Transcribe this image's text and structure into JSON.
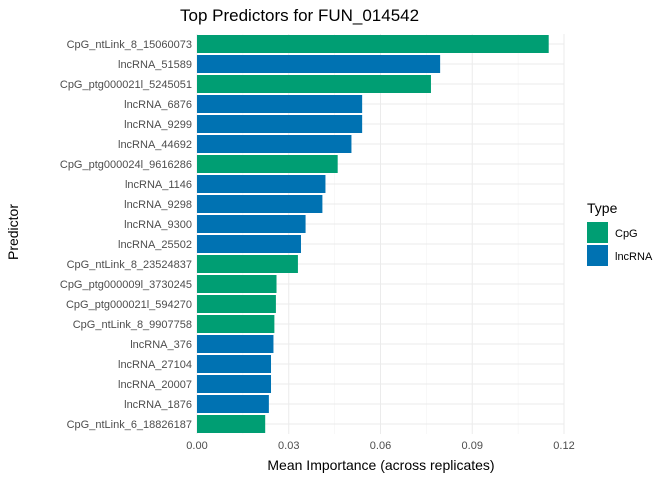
{
  "chart_data": {
    "type": "bar",
    "orientation": "horizontal",
    "title": "Top Predictors for FUN_014542",
    "xlabel": "Mean Importance (across replicates)",
    "ylabel": "Predictor",
    "xlim": [
      0,
      0.12
    ],
    "x_ticks": [
      "0.00",
      "0.03",
      "0.06",
      "0.09",
      "0.12"
    ],
    "grid": true,
    "legend": {
      "title": "Type",
      "position": "right",
      "entries": [
        {
          "label": "CpG",
          "color": "#009E73"
        },
        {
          "label": "lncRNA",
          "color": "#0072B2"
        }
      ]
    },
    "bars": [
      {
        "label": "CpG_ntLink_8_15060073",
        "value": 0.115,
        "type": "CpG"
      },
      {
        "label": "lncRNA_51589",
        "value": 0.0795,
        "type": "lncRNA"
      },
      {
        "label": "CpG_ptg000021l_5245051",
        "value": 0.0765,
        "type": "CpG"
      },
      {
        "label": "lncRNA_6876",
        "value": 0.054,
        "type": "lncRNA"
      },
      {
        "label": "lncRNA_9299",
        "value": 0.054,
        "type": "lncRNA"
      },
      {
        "label": "lncRNA_44692",
        "value": 0.0505,
        "type": "lncRNA"
      },
      {
        "label": "CpG_ptg000024l_9616286",
        "value": 0.046,
        "type": "CpG"
      },
      {
        "label": "lncRNA_1146",
        "value": 0.042,
        "type": "lncRNA"
      },
      {
        "label": "lncRNA_9298",
        "value": 0.041,
        "type": "lncRNA"
      },
      {
        "label": "lncRNA_9300",
        "value": 0.0355,
        "type": "lncRNA"
      },
      {
        "label": "lncRNA_25502",
        "value": 0.034,
        "type": "lncRNA"
      },
      {
        "label": "CpG_ntLink_8_23524837",
        "value": 0.033,
        "type": "CpG"
      },
      {
        "label": "CpG_ptg000009l_3730245",
        "value": 0.026,
        "type": "CpG"
      },
      {
        "label": "CpG_ptg000021l_594270",
        "value": 0.0258,
        "type": "CpG"
      },
      {
        "label": "CpG_ntLink_8_9907758",
        "value": 0.0253,
        "type": "CpG"
      },
      {
        "label": "lncRNA_376",
        "value": 0.025,
        "type": "lncRNA"
      },
      {
        "label": "lncRNA_27104",
        "value": 0.0242,
        "type": "lncRNA"
      },
      {
        "label": "lncRNA_20007",
        "value": 0.0242,
        "type": "lncRNA"
      },
      {
        "label": "lncRNA_1876",
        "value": 0.0235,
        "type": "lncRNA"
      },
      {
        "label": "CpG_ntLink_6_18826187",
        "value": 0.0223,
        "type": "CpG"
      }
    ]
  }
}
